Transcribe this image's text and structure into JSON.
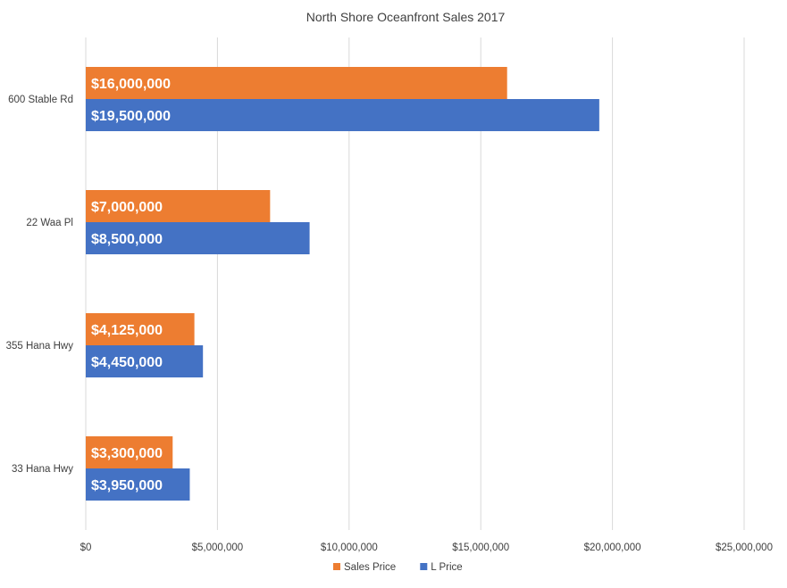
{
  "chart_data": {
    "type": "bar",
    "orientation": "horizontal",
    "title": "North Shore Oceanfront Sales 2017",
    "categories": [
      "600 Stable Rd",
      "22 Waa Pl",
      "355 Hana Hwy",
      "33 Hana Hwy"
    ],
    "series": [
      {
        "name": "Sales Price",
        "color": "#ed7d31",
        "values": [
          16000000,
          7000000,
          4125000,
          3300000
        ],
        "labels": [
          "$16,000,000",
          "$7,000,000",
          "$4,125,000",
          "$3,300,000"
        ]
      },
      {
        "name": "L Price",
        "color": "#4472c4",
        "values": [
          19500000,
          8500000,
          4450000,
          3950000
        ],
        "labels": [
          "$19,500,000",
          "$8,500,000",
          "$4,450,000",
          "$3,950,000"
        ]
      }
    ],
    "xlim": [
      0,
      25000000
    ],
    "xticks": [
      0,
      5000000,
      10000000,
      15000000,
      20000000,
      25000000
    ],
    "xtick_labels": [
      "$0",
      "$5,000,000",
      "$10,000,000",
      "$15,000,000",
      "$20,000,000",
      "$25,000,000"
    ],
    "grid": true,
    "legend_position": "bottom"
  }
}
